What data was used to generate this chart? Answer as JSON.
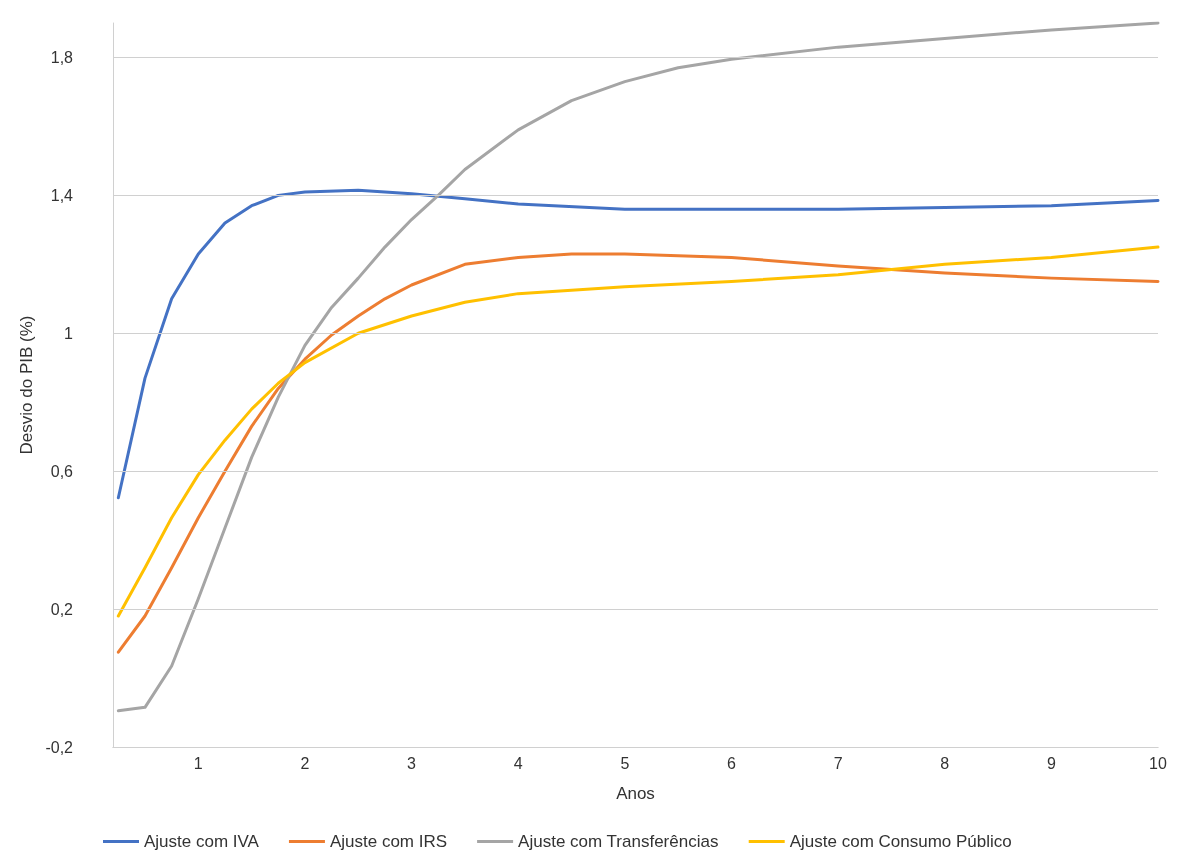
{
  "chart_data": {
    "type": "line",
    "xlabel": "Anos",
    "ylabel": "Desvio do PIB (%)",
    "xlim": [
      0.2,
      10
    ],
    "xticks": [
      1,
      2,
      3,
      4,
      5,
      6,
      7,
      8,
      9,
      10
    ],
    "ylim": [
      -0.2,
      1.9
    ],
    "yticks": [
      {
        "value": -0.2,
        "label": "-0,2"
      },
      {
        "value": 0.2,
        "label": "0,2"
      },
      {
        "value": 0.6,
        "label": "0,6"
      },
      1,
      {
        "value": 1.4,
        "label": "1,4"
      },
      {
        "value": 1.8,
        "label": "1,8"
      }
    ],
    "grid": "y",
    "legend": "bottom",
    "marker": "none",
    "line_style": "solid",
    "series": [
      {
        "name": "Ajuste com IVA",
        "color": "#4472c4",
        "x": [
          0.25,
          0.5,
          0.75,
          1,
          1.25,
          1.5,
          1.75,
          2,
          2.5,
          3,
          3.5,
          4,
          5,
          6,
          7,
          8,
          9,
          10
        ],
        "values": [
          0.523,
          0.87,
          1.1,
          1.23,
          1.32,
          1.37,
          1.4,
          1.41,
          1.415,
          1.405,
          1.39,
          1.375,
          1.36,
          1.36,
          1.36,
          1.365,
          1.37,
          1.385
        ]
      },
      {
        "name": "Ajuste com IRS",
        "color": "#ed7d31",
        "x": [
          0.25,
          0.5,
          0.75,
          1,
          1.25,
          1.5,
          1.75,
          2,
          2.25,
          2.5,
          2.75,
          3,
          3.5,
          4,
          4.5,
          5,
          6,
          7,
          8,
          9,
          10
        ],
        "values": [
          0.075,
          0.18,
          0.32,
          0.465,
          0.6,
          0.73,
          0.84,
          0.925,
          0.995,
          1.05,
          1.1,
          1.14,
          1.2,
          1.22,
          1.23,
          1.23,
          1.22,
          1.195,
          1.175,
          1.16,
          1.15
        ]
      },
      {
        "name": "Ajuste com Transferências",
        "color": "#a5a5a5",
        "x": [
          0.25,
          0.5,
          0.75,
          1,
          1.25,
          1.5,
          1.75,
          2,
          2.25,
          2.5,
          2.75,
          3,
          3.25,
          3.5,
          4,
          4.5,
          5,
          5.5,
          6,
          7,
          8,
          9,
          10
        ],
        "values": [
          -0.095,
          -0.085,
          0.035,
          0.23,
          0.435,
          0.64,
          0.815,
          0.965,
          1.075,
          1.16,
          1.25,
          1.33,
          1.4,
          1.475,
          1.59,
          1.675,
          1.73,
          1.77,
          1.795,
          1.83,
          1.855,
          1.88,
          1.9
        ]
      },
      {
        "name": "Ajuste com Consumo Público",
        "color": "#ffc000",
        "x": [
          0.25,
          0.5,
          0.75,
          1,
          1.25,
          1.5,
          1.75,
          2,
          2.5,
          3,
          3.5,
          4,
          5,
          6,
          7,
          8,
          9,
          10
        ],
        "values": [
          0.18,
          0.32,
          0.465,
          0.59,
          0.69,
          0.78,
          0.855,
          0.915,
          1.0,
          1.05,
          1.09,
          1.115,
          1.135,
          1.15,
          1.17,
          1.2,
          1.22,
          1.25
        ]
      }
    ]
  }
}
